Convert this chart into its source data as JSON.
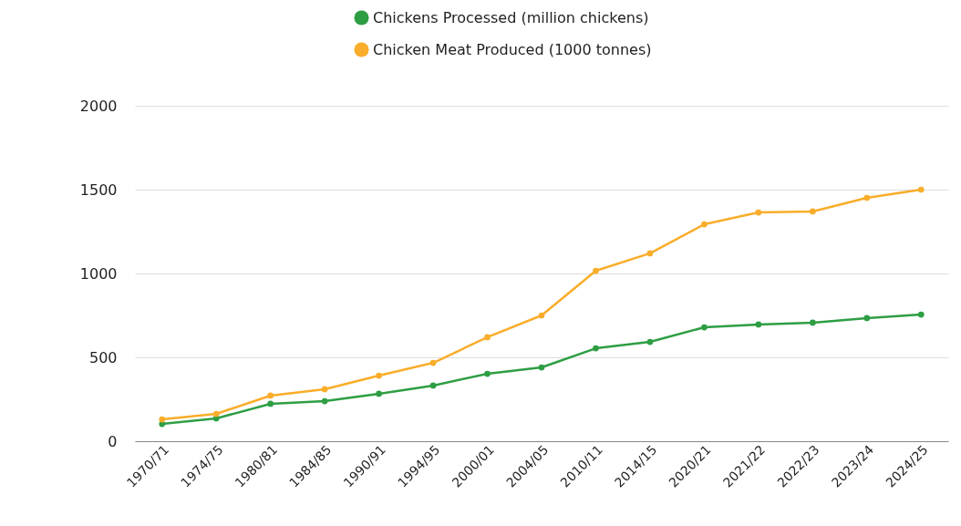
{
  "chart_data": {
    "type": "line",
    "categories": [
      "1970/71",
      "1974/75",
      "1980/81",
      "1984/85",
      "1990/91",
      "1994/95",
      "2000/01",
      "2004/05",
      "2010/11",
      "2014/15",
      "2020/21",
      "2021/22",
      "2022/23",
      "2023/24",
      "2024/25"
    ],
    "series": [
      {
        "name": "Chickens Processed (million chickens)",
        "color": "#2e9e44",
        "values": [
          103,
          136,
          223,
          239,
          283,
          332,
          402,
          440,
          554,
          592,
          679,
          696,
          707,
          734,
          755
        ]
      },
      {
        "name": "Chicken Meat Produced (1000 tonnes)",
        "color": "#f9ad2a",
        "values": [
          130,
          163,
          272,
          310,
          391,
          467,
          620,
          750,
          1016,
          1120,
          1293,
          1364,
          1370,
          1451,
          1500
        ]
      }
    ],
    "ylim": [
      0,
      2000
    ],
    "yticks": [
      0,
      500,
      1000,
      1500,
      2000
    ],
    "grid": "y",
    "legend": "top",
    "marker": "circle",
    "line_style": "solid"
  }
}
